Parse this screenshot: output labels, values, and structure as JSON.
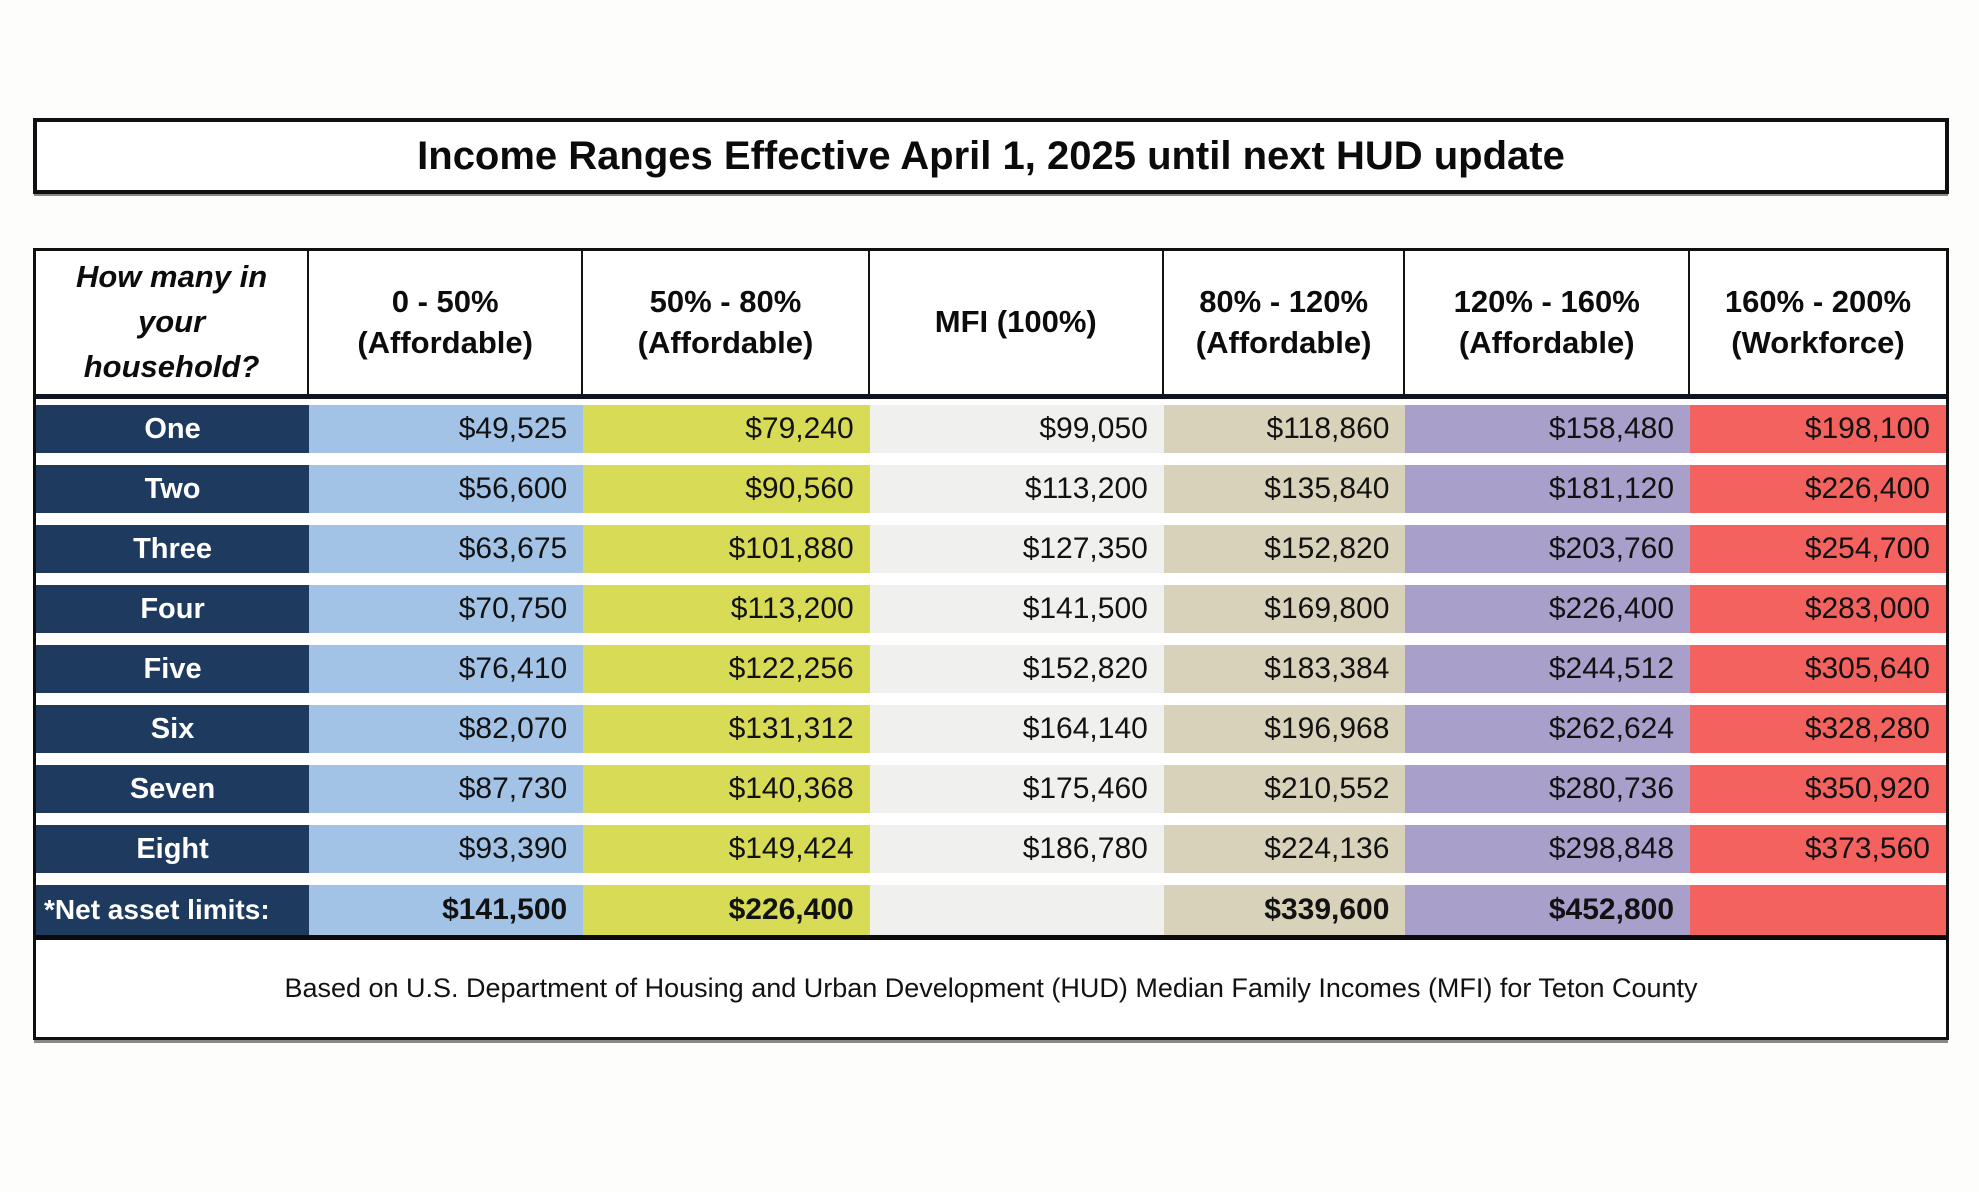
{
  "title": "Income Ranges Effective April 1, 2025 until next HUD update",
  "colors": {
    "navy": "#1e3a5f",
    "blue": "#a2c3e6",
    "yellow": "#d7db55",
    "gray": "#f0f0ee",
    "tan": "#d8d2bb",
    "purple": "#a89fcb",
    "red": "#f3625e"
  },
  "table": {
    "corner_lines": [
      "How many in",
      "your",
      "household?"
    ],
    "columns": [
      {
        "line1": "0 - 50%",
        "line2": "(Affordable)"
      },
      {
        "line1": "50% - 80%",
        "line2": "(Affordable)"
      },
      {
        "line1": "MFI (100%)",
        "line2": ""
      },
      {
        "line1": "80% - 120%",
        "line2": "(Affordable)"
      },
      {
        "line1": "120% - 160%",
        "line2": "(Affordable)"
      },
      {
        "line1": "160% - 200%",
        "line2": "(Workforce)"
      }
    ],
    "rows": [
      {
        "label": "One",
        "values": [
          "$49,525",
          "$79,240",
          "$99,050",
          "$118,860",
          "$158,480",
          "$198,100"
        ]
      },
      {
        "label": "Two",
        "values": [
          "$56,600",
          "$90,560",
          "$113,200",
          "$135,840",
          "$181,120",
          "$226,400"
        ]
      },
      {
        "label": "Three",
        "values": [
          "$63,675",
          "$101,880",
          "$127,350",
          "$152,820",
          "$203,760",
          "$254,700"
        ]
      },
      {
        "label": "Four",
        "values": [
          "$70,750",
          "$113,200",
          "$141,500",
          "$169,800",
          "$226,400",
          "$283,000"
        ]
      },
      {
        "label": "Five",
        "values": [
          "$76,410",
          "$122,256",
          "$152,820",
          "$183,384",
          "$244,512",
          "$305,640"
        ]
      },
      {
        "label": "Six",
        "values": [
          "$82,070",
          "$131,312",
          "$164,140",
          "$196,968",
          "$262,624",
          "$328,280"
        ]
      },
      {
        "label": "Seven",
        "values": [
          "$87,730",
          "$140,368",
          "$175,460",
          "$210,552",
          "$280,736",
          "$350,920"
        ]
      },
      {
        "label": "Eight",
        "values": [
          "$93,390",
          "$149,424",
          "$186,780",
          "$224,136",
          "$298,848",
          "$373,560"
        ]
      }
    ],
    "net_asset_row": {
      "label": "*Net asset limits:",
      "values": [
        "$141,500",
        "$226,400",
        "",
        "$339,600",
        "$452,800",
        ""
      ]
    }
  },
  "footer": {
    "note": "Based on U.S. Department of Housing and Urban Development (HUD) Median Family Incomes (MFI) for Teton County"
  }
}
